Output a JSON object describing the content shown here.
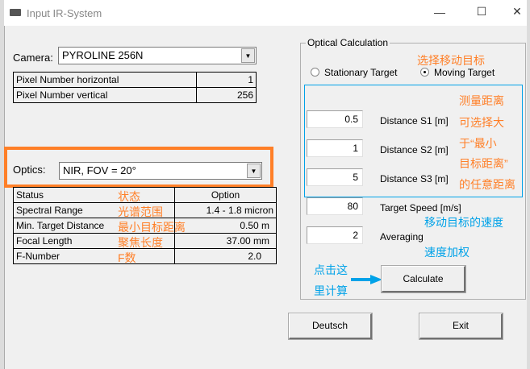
{
  "window": {
    "title": "Input IR-System",
    "controls": {
      "minimize": "—",
      "maximize": "☐",
      "close": "✕"
    }
  },
  "camera": {
    "label": "Camera:",
    "value": "PYROLINE 256N"
  },
  "pixel_table": [
    {
      "name": "Pixel Number horizontal",
      "value": "1"
    },
    {
      "name": "Pixel Number vertical",
      "value": "256"
    }
  ],
  "optics": {
    "label": "Optics:",
    "value": "NIR, FOV = 20°",
    "highlight_color": "#ff7f27"
  },
  "optics_table": [
    {
      "name": "Status",
      "note": "状态",
      "value": "Option"
    },
    {
      "name": "Spectral Range",
      "note": "光谱范围",
      "value": "1.4 - 1.8 micron"
    },
    {
      "name": "Min. Target Distance",
      "note": "最小目标距离",
      "value": "0.50 m"
    },
    {
      "name": "Focal Length",
      "note": "聚焦长度",
      "value": "37.00 mm"
    },
    {
      "name": "F-Number",
      "note": "F数",
      "value": "2.0"
    }
  ],
  "calc": {
    "legend": "Optical Calculation",
    "target_note": "选择移动目标",
    "radio_stationary": "Stationary Target",
    "radio_moving": "Moving Target",
    "selected": "Moving Target",
    "distance_notes": [
      "测量距离",
      "可选择大",
      "于“最小",
      "目标距离”",
      "的任意距离"
    ],
    "fields": [
      {
        "label": "Distance S1 [m]",
        "value": "0.5"
      },
      {
        "label": "Distance S2 [m]",
        "value": "1"
      },
      {
        "label": "Distance S3 [m]",
        "value": "5"
      },
      {
        "label": "Target Speed [m/s]",
        "value": "80"
      },
      {
        "label": "Averaging",
        "value": "2"
      }
    ],
    "speed_note": "移动目标的速度",
    "averaging_note": "速度加权",
    "click_note_1": "点击这",
    "click_note_2": "里计算",
    "calculate": "Calculate"
  },
  "buttons": {
    "deutsch": "Deutsch",
    "exit": "Exit"
  },
  "colors": {
    "annotation_orange": "#ff7f27",
    "annotation_blue": "#00a2e8"
  }
}
